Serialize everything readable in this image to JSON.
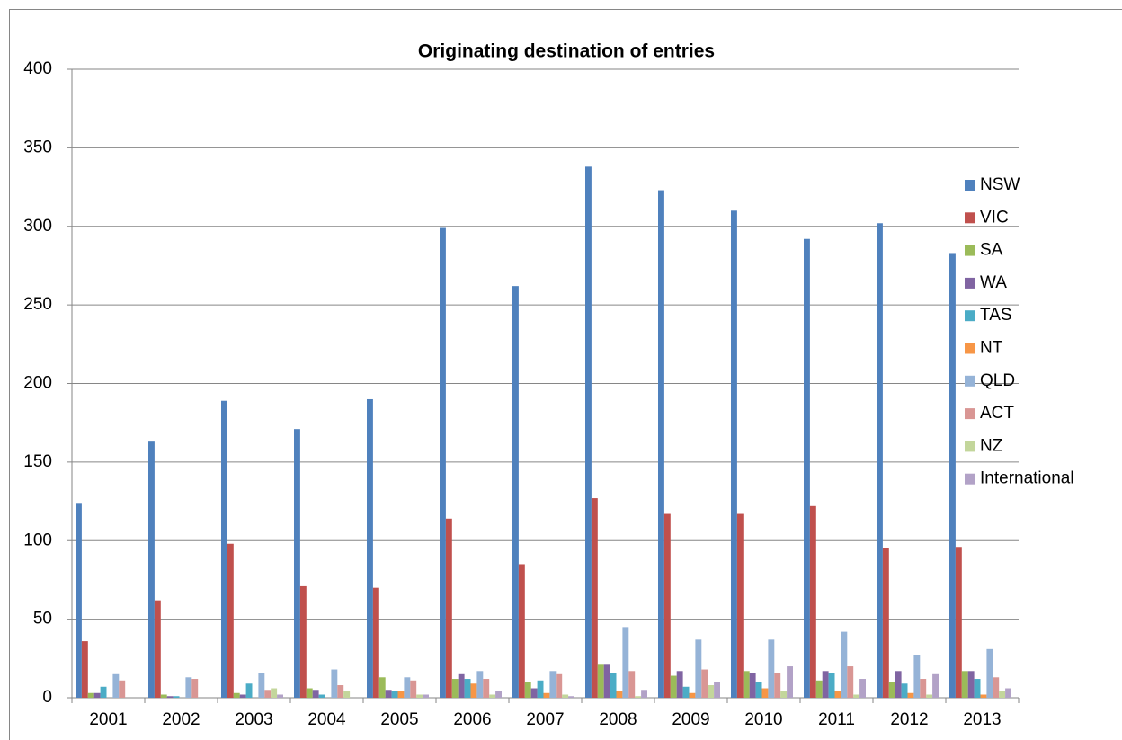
{
  "chart_data": {
    "type": "bar",
    "title": "Originating destination of entries",
    "categories": [
      "2001",
      "2002",
      "2003",
      "2004",
      "2005",
      "2006",
      "2007",
      "2008",
      "2009",
      "2010",
      "2011",
      "2012",
      "2013"
    ],
    "series": [
      {
        "name": "NSW",
        "color": "#4F81BD",
        "values": [
          124,
          163,
          189,
          171,
          190,
          299,
          262,
          338,
          323,
          310,
          292,
          302,
          283
        ]
      },
      {
        "name": "VIC",
        "color": "#C0504D",
        "values": [
          36,
          62,
          98,
          71,
          70,
          114,
          85,
          127,
          117,
          117,
          122,
          95,
          96
        ]
      },
      {
        "name": "SA",
        "color": "#9BBB59",
        "values": [
          3,
          2,
          3,
          6,
          13,
          12,
          10,
          21,
          14,
          17,
          11,
          10,
          17
        ]
      },
      {
        "name": "WA",
        "color": "#8064A2",
        "values": [
          3,
          1,
          2,
          5,
          5,
          15,
          6,
          21,
          17,
          16,
          17,
          17,
          17
        ]
      },
      {
        "name": "TAS",
        "color": "#4BACC6",
        "values": [
          7,
          1,
          9,
          2,
          4,
          12,
          11,
          16,
          7,
          10,
          16,
          9,
          12
        ]
      },
      {
        "name": "NT",
        "color": "#F79646",
        "values": [
          0,
          0,
          0,
          0,
          4,
          9,
          3,
          4,
          3,
          6,
          4,
          3,
          2
        ]
      },
      {
        "name": "QLD",
        "color": "#95B3D7",
        "values": [
          15,
          13,
          16,
          18,
          13,
          17,
          17,
          45,
          37,
          37,
          42,
          27,
          31
        ]
      },
      {
        "name": "ACT",
        "color": "#D99694",
        "values": [
          11,
          12,
          5,
          8,
          11,
          12,
          15,
          17,
          18,
          16,
          20,
          12,
          13
        ]
      },
      {
        "name": "NZ",
        "color": "#C3D69B",
        "values": [
          0,
          0,
          6,
          4,
          2,
          2,
          2,
          1,
          8,
          4,
          2,
          2,
          4
        ]
      },
      {
        "name": "International",
        "color": "#B2A2C7",
        "values": [
          0,
          0,
          2,
          0,
          2,
          4,
          1,
          5,
          10,
          20,
          12,
          15,
          6
        ]
      }
    ],
    "ylim": [
      0,
      400
    ],
    "yticks": [
      0,
      50,
      100,
      150,
      200,
      250,
      300,
      350,
      400
    ],
    "grid": true,
    "legend": "right"
  }
}
